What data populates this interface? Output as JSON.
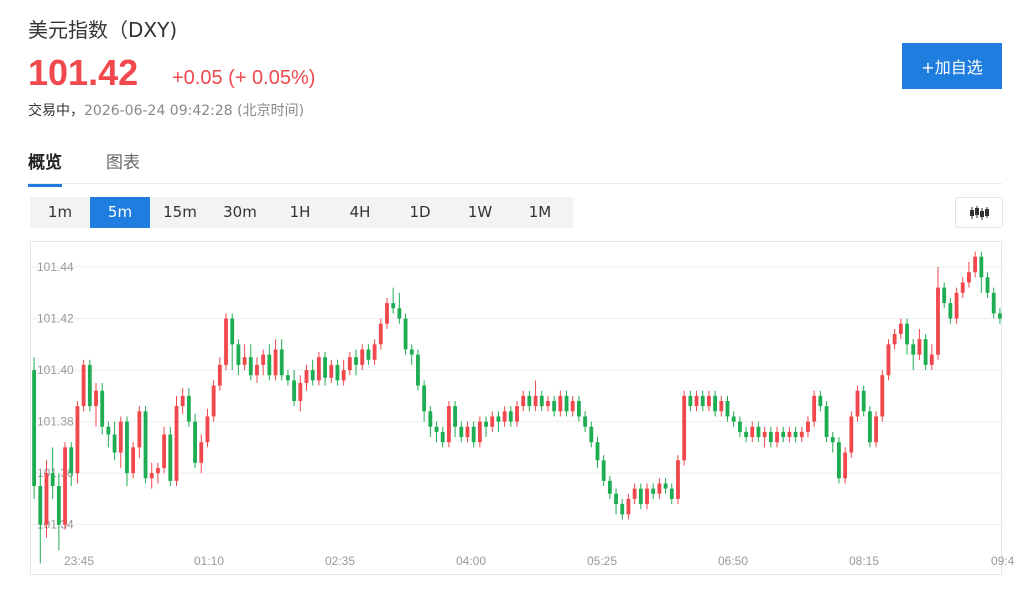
{
  "header": {
    "title": "美元指数（DXY)",
    "price": "101.42",
    "change": "+0.05 (+ 0.05%)",
    "status_label": "交易中，",
    "timestamp": "2026-06-24 09:42:28 (北京时间)",
    "add_button": "+加自选"
  },
  "tabs": [
    {
      "label": "概览",
      "active": true
    },
    {
      "label": "图表",
      "active": false
    }
  ],
  "intervals": [
    "1m",
    "5m",
    "15m",
    "30m",
    "1H",
    "4H",
    "1D",
    "1W",
    "1M"
  ],
  "active_interval": "5m",
  "colors": {
    "up": "#f0484d",
    "down": "#1fad53",
    "accent": "#1f7de0"
  },
  "icons": {
    "chart_type": "candlestick-icon"
  },
  "chart_data": {
    "type": "candlestick",
    "y_ticks": [
      "101.44",
      "101.42",
      "101.40",
      "101.38",
      "101.36",
      "101.34"
    ],
    "ylim": [
      101.3325,
      101.4435
    ],
    "x_ticks": [
      "23:45",
      "01:10",
      "02:35",
      "04:00",
      "05:25",
      "06:50",
      "08:15",
      "09:4"
    ],
    "grid": true,
    "candles": [
      [
        101.4,
        101.355,
        101.405,
        101.35
      ],
      [
        101.355,
        101.34,
        101.36,
        101.325
      ],
      [
        101.34,
        101.36,
        101.365,
        101.335
      ],
      [
        101.36,
        101.355,
        101.37,
        101.35
      ],
      [
        101.355,
        101.34,
        101.36,
        101.33
      ],
      [
        101.34,
        101.37,
        101.372,
        101.338
      ],
      [
        101.37,
        101.36,
        101.372,
        101.355
      ],
      [
        101.36,
        101.386,
        101.388,
        101.356
      ],
      [
        101.386,
        101.402,
        101.404,
        101.384
      ],
      [
        101.402,
        101.386,
        101.404,
        101.384
      ],
      [
        101.386,
        101.392,
        101.395,
        101.378
      ],
      [
        101.392,
        101.378,
        101.395,
        101.375
      ],
      [
        101.378,
        101.375,
        101.38,
        101.37
      ],
      [
        101.375,
        101.368,
        101.38,
        101.365
      ],
      [
        101.368,
        101.38,
        101.382,
        101.362
      ],
      [
        101.38,
        101.36,
        101.382,
        101.355
      ],
      [
        101.36,
        101.37,
        101.372,
        101.358
      ],
      [
        101.37,
        101.384,
        101.386,
        101.366
      ],
      [
        101.384,
        101.358,
        101.386,
        101.356
      ],
      [
        101.358,
        101.36,
        101.364,
        101.354
      ],
      [
        101.36,
        101.362,
        101.364,
        101.356
      ],
      [
        101.362,
        101.375,
        101.378,
        101.36
      ],
      [
        101.375,
        101.357,
        101.378,
        101.355
      ],
      [
        101.357,
        101.386,
        101.39,
        101.355
      ],
      [
        101.386,
        101.39,
        101.393,
        101.383
      ],
      [
        101.39,
        101.38,
        101.393,
        101.378
      ],
      [
        101.38,
        101.364,
        101.383,
        101.362
      ],
      [
        101.364,
        101.372,
        101.375,
        101.36
      ],
      [
        101.372,
        101.382,
        101.385,
        101.37
      ],
      [
        101.382,
        101.394,
        101.396,
        101.38
      ],
      [
        101.394,
        101.402,
        101.405,
        101.392
      ],
      [
        101.402,
        101.42,
        101.422,
        101.4
      ],
      [
        101.42,
        101.41,
        101.422,
        101.4
      ],
      [
        101.41,
        101.402,
        101.412,
        101.398
      ],
      [
        101.402,
        101.405,
        101.41,
        101.4
      ],
      [
        101.405,
        101.398,
        101.41,
        101.396
      ],
      [
        101.398,
        101.402,
        101.405,
        101.395
      ],
      [
        101.402,
        101.406,
        101.408,
        101.398
      ],
      [
        101.406,
        101.398,
        101.41,
        101.396
      ],
      [
        101.398,
        101.408,
        101.412,
        101.396
      ],
      [
        101.408,
        101.398,
        101.412,
        101.396
      ],
      [
        101.398,
        101.396,
        101.4,
        101.394
      ],
      [
        101.396,
        101.388,
        101.4,
        101.386
      ],
      [
        101.388,
        101.395,
        101.398,
        101.384
      ],
      [
        101.395,
        101.4,
        101.402,
        101.392
      ],
      [
        101.4,
        101.396,
        101.404,
        101.394
      ],
      [
        101.396,
        101.405,
        101.407,
        101.394
      ],
      [
        101.405,
        101.397,
        101.407,
        101.394
      ],
      [
        101.397,
        101.402,
        101.404,
        101.395
      ],
      [
        101.402,
        101.396,
        101.404,
        101.394
      ],
      [
        101.396,
        101.4,
        101.404,
        101.394
      ],
      [
        101.4,
        101.405,
        101.407,
        101.398
      ],
      [
        101.405,
        101.402,
        101.408,
        101.398
      ],
      [
        101.402,
        101.408,
        101.41,
        101.4
      ],
      [
        101.408,
        101.404,
        101.41,
        101.402
      ],
      [
        101.404,
        101.41,
        101.412,
        101.402
      ],
      [
        101.41,
        101.418,
        101.42,
        101.408
      ],
      [
        101.418,
        101.426,
        101.428,
        101.416
      ],
      [
        101.426,
        101.424,
        101.432,
        101.422
      ],
      [
        101.424,
        101.42,
        101.43,
        101.418
      ],
      [
        101.42,
        101.408,
        101.422,
        101.406
      ],
      [
        101.408,
        101.406,
        101.41,
        101.402
      ],
      [
        101.406,
        101.394,
        101.408,
        101.392
      ],
      [
        101.394,
        101.384,
        101.396,
        101.38
      ],
      [
        101.384,
        101.378,
        101.386,
        101.374
      ],
      [
        101.378,
        101.376,
        101.38,
        101.372
      ],
      [
        101.376,
        101.372,
        101.378,
        101.37
      ],
      [
        101.372,
        101.386,
        101.388,
        101.37
      ],
      [
        101.386,
        101.378,
        101.388,
        101.374
      ],
      [
        101.378,
        101.374,
        101.38,
        101.372
      ],
      [
        101.374,
        101.378,
        101.38,
        101.372
      ],
      [
        101.378,
        101.372,
        101.38,
        101.37
      ],
      [
        101.372,
        101.38,
        101.382,
        101.37
      ],
      [
        101.38,
        101.378,
        101.382,
        101.374
      ],
      [
        101.378,
        101.382,
        101.384,
        101.376
      ],
      [
        101.382,
        101.38,
        101.384,
        101.376
      ],
      [
        101.38,
        101.384,
        101.386,
        101.378
      ],
      [
        101.384,
        101.38,
        101.386,
        101.378
      ],
      [
        101.38,
        101.386,
        101.388,
        101.378
      ],
      [
        101.386,
        101.39,
        101.392,
        101.384
      ],
      [
        101.39,
        101.386,
        101.392,
        101.384
      ],
      [
        101.386,
        101.39,
        101.396,
        101.384
      ],
      [
        101.39,
        101.386,
        101.392,
        101.384
      ],
      [
        101.386,
        101.388,
        101.39,
        101.384
      ],
      [
        101.388,
        101.384,
        101.39,
        101.382
      ],
      [
        101.384,
        101.39,
        101.392,
        101.382
      ],
      [
        101.39,
        101.384,
        101.392,
        101.382
      ],
      [
        101.384,
        101.388,
        101.39,
        101.382
      ],
      [
        101.388,
        101.382,
        101.39,
        101.38
      ],
      [
        101.382,
        101.378,
        101.384,
        101.376
      ],
      [
        101.378,
        101.372,
        101.38,
        101.37
      ],
      [
        101.372,
        101.365,
        101.374,
        101.362
      ],
      [
        101.365,
        101.357,
        101.367,
        101.355
      ],
      [
        101.357,
        101.352,
        101.359,
        101.35
      ],
      [
        101.352,
        101.348,
        101.354,
        101.344
      ],
      [
        101.348,
        101.344,
        101.35,
        101.342
      ],
      [
        101.344,
        101.35,
        101.352,
        101.342
      ],
      [
        101.35,
        101.354,
        101.356,
        101.348
      ],
      [
        101.354,
        101.348,
        101.356,
        101.346
      ],
      [
        101.348,
        101.354,
        101.356,
        101.346
      ],
      [
        101.354,
        101.352,
        101.356,
        101.35
      ],
      [
        101.352,
        101.356,
        101.358,
        101.35
      ],
      [
        101.356,
        101.354,
        101.358,
        101.352
      ],
      [
        101.354,
        101.35,
        101.356,
        101.348
      ],
      [
        101.35,
        101.365,
        101.367,
        101.348
      ],
      [
        101.365,
        101.39,
        101.392,
        101.363
      ],
      [
        101.39,
        101.386,
        101.392,
        101.384
      ],
      [
        101.386,
        101.39,
        101.392,
        101.384
      ],
      [
        101.39,
        101.386,
        101.392,
        101.384
      ],
      [
        101.386,
        101.39,
        101.392,
        101.384
      ],
      [
        101.39,
        101.384,
        101.392,
        101.382
      ],
      [
        101.384,
        101.388,
        101.39,
        101.382
      ],
      [
        101.388,
        101.382,
        101.39,
        101.38
      ],
      [
        101.382,
        101.38,
        101.384,
        101.378
      ],
      [
        101.38,
        101.376,
        101.382,
        101.374
      ],
      [
        101.376,
        101.374,
        101.378,
        101.372
      ],
      [
        101.374,
        101.378,
        101.38,
        101.372
      ],
      [
        101.378,
        101.374,
        101.38,
        101.372
      ],
      [
        101.374,
        101.376,
        101.378,
        101.37
      ],
      [
        101.376,
        101.372,
        101.378,
        101.37
      ],
      [
        101.372,
        101.376,
        101.378,
        101.37
      ],
      [
        101.376,
        101.374,
        101.378,
        101.372
      ],
      [
        101.374,
        101.376,
        101.378,
        101.372
      ],
      [
        101.376,
        101.374,
        101.378,
        101.372
      ],
      [
        101.374,
        101.376,
        101.378,
        101.372
      ],
      [
        101.376,
        101.38,
        101.382,
        101.374
      ],
      [
        101.38,
        101.39,
        101.392,
        101.378
      ],
      [
        101.39,
        101.386,
        101.392,
        101.384
      ],
      [
        101.386,
        101.374,
        101.388,
        101.372
      ],
      [
        101.374,
        101.372,
        101.376,
        101.368
      ],
      [
        101.372,
        101.358,
        101.374,
        101.356
      ],
      [
        101.358,
        101.368,
        101.37,
        101.356
      ],
      [
        101.368,
        101.382,
        101.384,
        101.366
      ],
      [
        101.382,
        101.392,
        101.394,
        101.38
      ],
      [
        101.392,
        101.384,
        101.394,
        101.382
      ],
      [
        101.384,
        101.372,
        101.386,
        101.37
      ],
      [
        101.372,
        101.382,
        101.384,
        101.37
      ],
      [
        101.382,
        101.398,
        101.4,
        101.38
      ],
      [
        101.398,
        101.41,
        101.412,
        101.396
      ],
      [
        101.41,
        101.414,
        101.416,
        101.408
      ],
      [
        101.414,
        101.418,
        101.42,
        101.412
      ],
      [
        101.418,
        101.41,
        101.42,
        101.406
      ],
      [
        101.41,
        101.406,
        101.412,
        101.4
      ],
      [
        101.406,
        101.412,
        101.416,
        101.404
      ],
      [
        101.412,
        101.402,
        101.414,
        101.4
      ],
      [
        101.402,
        101.406,
        101.41,
        101.4
      ],
      [
        101.406,
        101.432,
        101.44,
        101.404
      ],
      [
        101.432,
        101.426,
        101.434,
        101.424
      ],
      [
        101.426,
        101.42,
        101.428,
        101.418
      ],
      [
        101.42,
        101.43,
        101.432,
        101.418
      ],
      [
        101.43,
        101.434,
        101.436,
        101.428
      ],
      [
        101.434,
        101.438,
        101.442,
        101.432
      ],
      [
        101.438,
        101.444,
        101.446,
        101.436
      ],
      [
        101.444,
        101.436,
        101.446,
        101.43
      ],
      [
        101.436,
        101.43,
        101.438,
        101.428
      ],
      [
        101.43,
        101.422,
        101.432,
        101.42
      ],
      [
        101.422,
        101.42,
        101.424,
        101.418
      ]
    ]
  }
}
